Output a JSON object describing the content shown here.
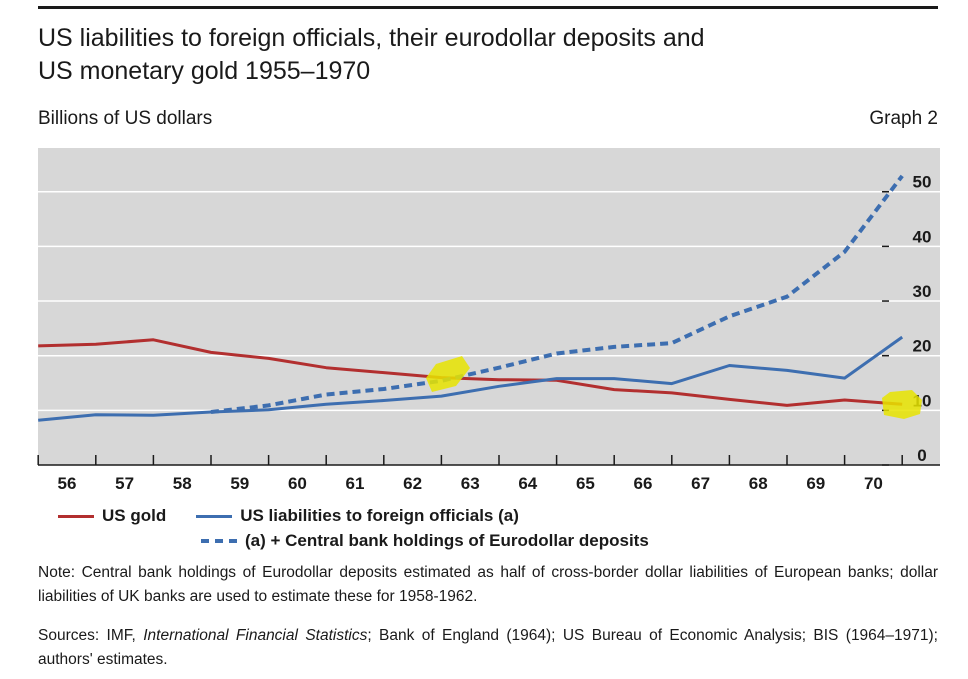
{
  "header": {
    "title_line1": "US liabilities to foreign officials, their eurodollar deposits and",
    "title_line2": "US monetary gold 1955–1970",
    "subtitle": "Billions of US dollars",
    "graph_label": "Graph 2"
  },
  "chart_data": {
    "type": "line",
    "title": "US liabilities to foreign officials, their eurodollar deposits and US monetary gold 1955–1970",
    "ylabel": "Billions of US dollars",
    "xlabel": "",
    "categories": [
      "56",
      "57",
      "58",
      "59",
      "60",
      "61",
      "62",
      "63",
      "64",
      "65",
      "66",
      "67",
      "68",
      "69",
      "70"
    ],
    "ylim": [
      0,
      58
    ],
    "yticks": [
      0,
      10,
      20,
      30,
      40,
      50
    ],
    "grid": true,
    "series": [
      {
        "name": "US gold",
        "color": "#b22f2f",
        "style": "solid",
        "x": [
          55.5,
          56.5,
          57.5,
          58.5,
          59.5,
          60.5,
          61.5,
          62.5,
          63.5,
          64.5,
          65.5,
          66.5,
          67.5,
          68.5,
          69.5,
          70.5
        ],
        "values": [
          21.8,
          22.1,
          22.9,
          20.6,
          19.5,
          17.8,
          16.9,
          16.0,
          15.6,
          15.5,
          13.8,
          13.2,
          12.0,
          10.9,
          11.9,
          11.1
        ]
      },
      {
        "name": "US liabilities to foreign officials (a)",
        "color": "#3d6eb0",
        "style": "solid",
        "x": [
          55.5,
          56.5,
          57.5,
          58.5,
          59.5,
          60.5,
          61.5,
          62.5,
          63.5,
          64.5,
          65.5,
          66.5,
          67.5,
          68.5,
          69.5,
          70.5
        ],
        "values": [
          8.2,
          9.2,
          9.1,
          9.7,
          10.1,
          11.1,
          11.8,
          12.6,
          14.4,
          15.8,
          15.8,
          14.9,
          18.2,
          17.3,
          15.9,
          23.4
        ]
      },
      {
        "name": "(a) + Central bank holdings of Eurodollar deposits",
        "color": "#3d6eb0",
        "style": "dashed",
        "x": [
          58.5,
          59.5,
          60.5,
          61.5,
          62.5,
          63.5,
          64.5,
          65.5,
          66.5,
          67.5,
          68.5,
          69.5,
          70.5
        ],
        "values": [
          9.7,
          10.9,
          12.9,
          13.9,
          15.4,
          17.8,
          20.4,
          21.6,
          22.3,
          27.2,
          30.8,
          39.0,
          52.9
        ]
      }
    ]
  },
  "legend": {
    "gold": "US gold",
    "liabilities": "US liabilities to foreign officials (a)",
    "eurodollar": "(a) + Central bank holdings of Eurodollar deposits"
  },
  "note": {
    "text": "Note: Central bank holdings of Eurodollar deposits estimated as half of cross-border dollar liabilities of European banks; dollar liabilities of UK banks are used to estimate these for 1958-1962."
  },
  "sources": {
    "prefix": "Sources: IMF, ",
    "italic": "International Financial Statistics",
    "suffix": "; Bank of England (1964); US Bureau of Economic Analysis; BIS (1964–1971); authors' estimates."
  },
  "colors": {
    "plot_bg": "#d7d7d7",
    "grid": "#ffffff",
    "gold": "#b22f2f",
    "blue": "#3d6eb0",
    "highlight": "#e8e400"
  }
}
